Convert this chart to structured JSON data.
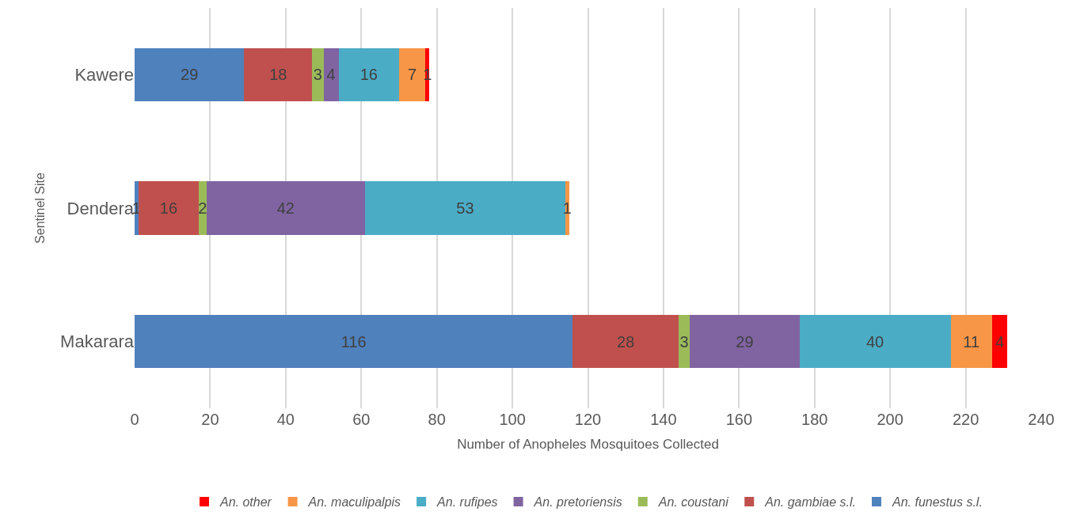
{
  "chart_data": {
    "type": "bar",
    "orientation": "horizontal",
    "stacked": true,
    "data_labels": true,
    "xlabel": "Number of Anopheles Mosquitoes Collected",
    "ylabel": "Sentinel Site",
    "categories": [
      "Kawere",
      "Dendera",
      "Makarara"
    ],
    "series": [
      {
        "name": "An. funestus s.l.",
        "color": "#4f81bd",
        "values": [
          29,
          1,
          116
        ]
      },
      {
        "name": "An. gambiae s.l.",
        "color": "#c0504d",
        "values": [
          18,
          16,
          28
        ]
      },
      {
        "name": "An. coustani",
        "color": "#9bbb59",
        "values": [
          3,
          2,
          3
        ]
      },
      {
        "name": "An. pretoriensis",
        "color": "#8064a2",
        "values": [
          4,
          42,
          29
        ]
      },
      {
        "name": "An. rufipes",
        "color": "#4bacc6",
        "values": [
          16,
          53,
          40
        ]
      },
      {
        "name": "An. maculipalpis",
        "color": "#f79646",
        "values": [
          7,
          1,
          11
        ]
      },
      {
        "name": "An. other",
        "color": "#ff0000",
        "values": [
          1,
          null,
          4
        ]
      }
    ],
    "xlim": [
      0,
      240
    ],
    "xticks": [
      0,
      20,
      40,
      60,
      80,
      100,
      120,
      140,
      160,
      180,
      200,
      220,
      240
    ],
    "grid": "x",
    "legend": "bottom"
  }
}
